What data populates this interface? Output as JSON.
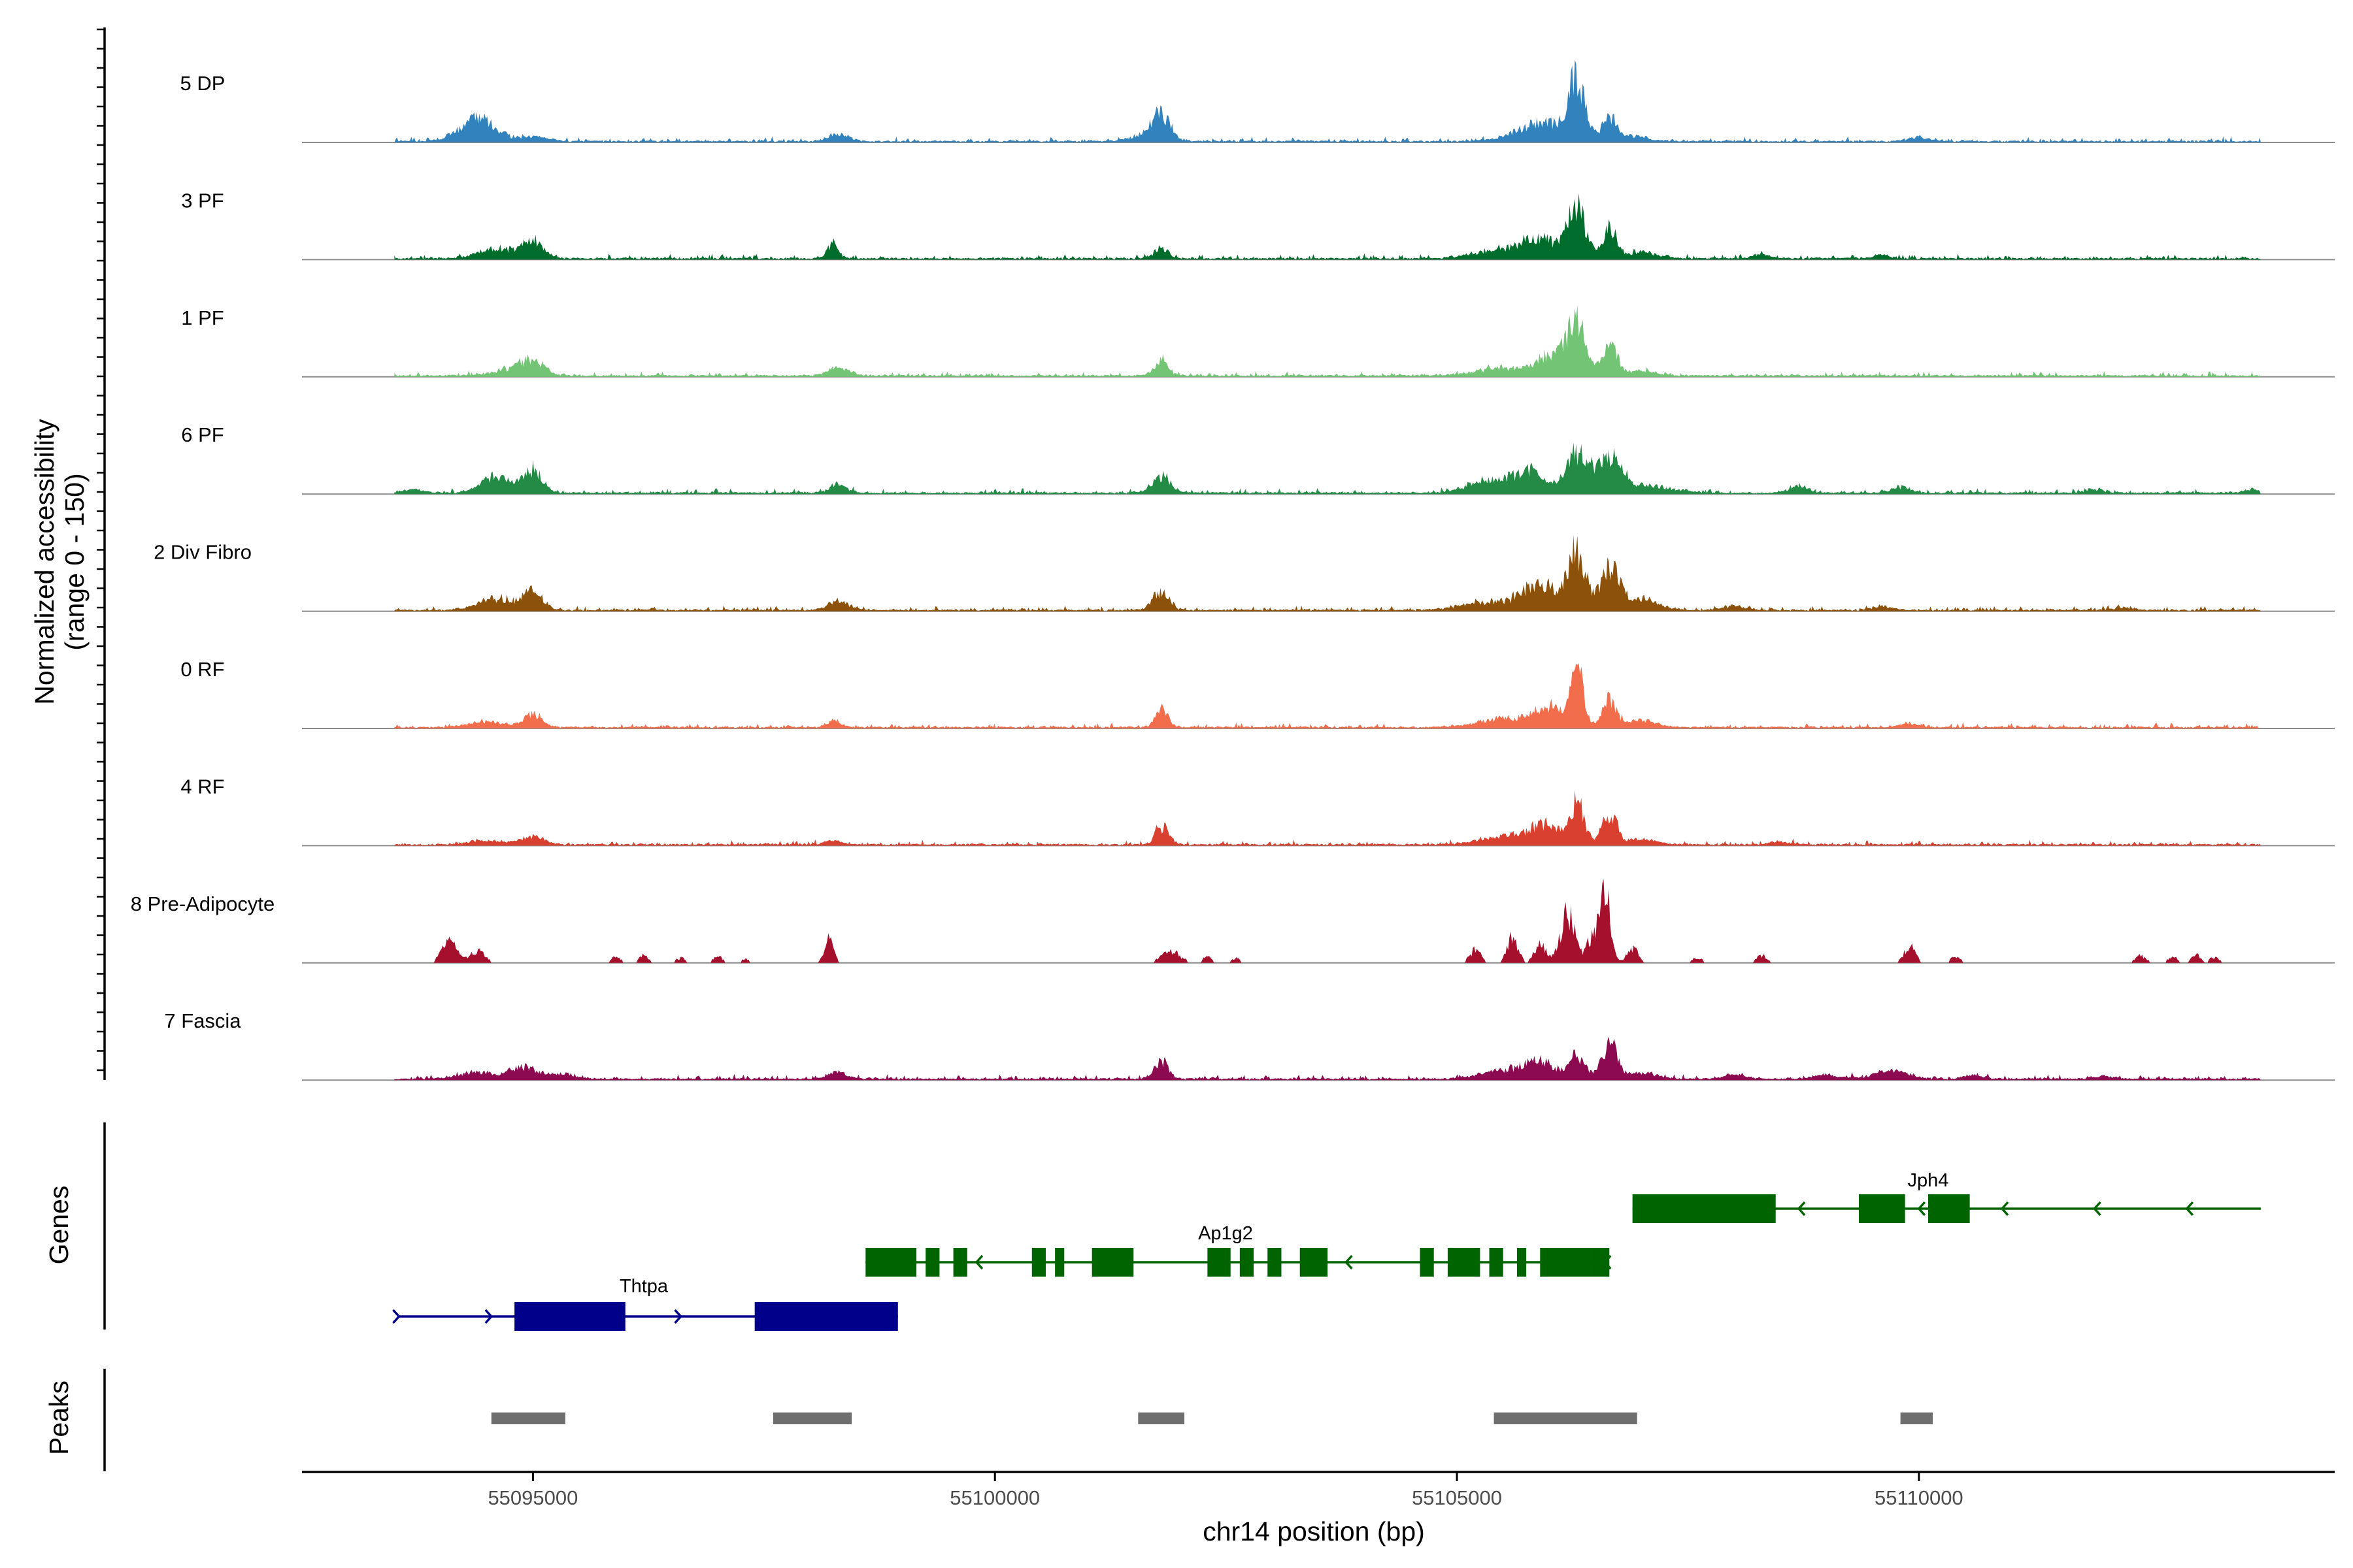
{
  "chart_data": {
    "type": "area",
    "title": "",
    "xlabel": "chr14 position (bp)",
    "ylabel_line1": "Normalized accessibility",
    "ylabel_line2": "(range 0 - 150)",
    "ylim": [
      0,
      150
    ],
    "xlim": [
      55092500,
      55114500
    ],
    "x_ticks": [
      55095000,
      55100000,
      55105000,
      55110000
    ],
    "x_tick_labels": [
      "55095000",
      "55100000",
      "55105000",
      "55110000"
    ],
    "data_start": 55093500,
    "data_end": 55113700,
    "tracks": [
      {
        "name": "5 DP",
        "color": "#3182BD",
        "noise": 0.05,
        "peaks": [
          [
            55094400,
            38,
            200
          ],
          [
            55095000,
            8,
            150
          ],
          [
            55098300,
            14,
            110
          ],
          [
            55101800,
            42,
            100
          ],
          [
            55101600,
            10,
            160
          ],
          [
            55105700,
            14,
            220
          ],
          [
            55106000,
            26,
            200
          ],
          [
            55106300,
            100,
            90
          ],
          [
            55106650,
            45,
            80
          ],
          [
            55106950,
            10,
            120
          ],
          [
            55110000,
            8,
            110
          ]
        ]
      },
      {
        "name": "3 PF",
        "color": "#006D2C",
        "noise": 0.05,
        "peaks": [
          [
            55094600,
            18,
            200
          ],
          [
            55095000,
            30,
            110
          ],
          [
            55098250,
            28,
            60
          ],
          [
            55101800,
            18,
            80
          ],
          [
            55105400,
            12,
            260
          ],
          [
            55105900,
            32,
            220
          ],
          [
            55106300,
            88,
            90
          ],
          [
            55106650,
            50,
            80
          ],
          [
            55107000,
            12,
            160
          ],
          [
            55108300,
            8,
            90
          ],
          [
            55109600,
            7,
            90
          ]
        ]
      },
      {
        "name": "1 PF",
        "color": "#74C476",
        "noise": 0.04,
        "peaks": [
          [
            55094800,
            12,
            220
          ],
          [
            55095000,
            22,
            110
          ],
          [
            55098300,
            14,
            110
          ],
          [
            55101800,
            26,
            80
          ],
          [
            55105500,
            14,
            280
          ],
          [
            55106050,
            38,
            150
          ],
          [
            55106300,
            85,
            90
          ],
          [
            55106650,
            55,
            80
          ],
          [
            55107000,
            10,
            160
          ]
        ]
      },
      {
        "name": "6 PF",
        "color": "#238B45",
        "noise": 0.06,
        "peaks": [
          [
            55093700,
            7,
            100
          ],
          [
            55094600,
            28,
            160
          ],
          [
            55095000,
            40,
            100
          ],
          [
            55098300,
            16,
            90
          ],
          [
            55101800,
            30,
            100
          ],
          [
            55105300,
            20,
            200
          ],
          [
            55105800,
            38,
            200
          ],
          [
            55106300,
            68,
            110
          ],
          [
            55106650,
            62,
            140
          ],
          [
            55107100,
            12,
            240
          ],
          [
            55108700,
            12,
            100
          ],
          [
            55109800,
            10,
            100
          ],
          [
            55111900,
            7,
            100
          ],
          [
            55113600,
            7,
            80
          ]
        ]
      },
      {
        "name": "2 Div Fibro",
        "color": "#8C510A",
        "noise": 0.06,
        "peaks": [
          [
            55094600,
            20,
            200
          ],
          [
            55095000,
            30,
            110
          ],
          [
            55098300,
            16,
            110
          ],
          [
            55101800,
            32,
            90
          ],
          [
            55105300,
            14,
            260
          ],
          [
            55105900,
            45,
            200
          ],
          [
            55106300,
            98,
            90
          ],
          [
            55106650,
            75,
            100
          ],
          [
            55107000,
            20,
            180
          ],
          [
            55108000,
            8,
            110
          ],
          [
            55109600,
            7,
            110
          ],
          [
            55112200,
            6,
            100
          ]
        ]
      },
      {
        "name": "0 RF",
        "color": "#F16D4B",
        "noise": 0.05,
        "peaks": [
          [
            55094500,
            10,
            200
          ],
          [
            55095000,
            22,
            100
          ],
          [
            55098250,
            14,
            70
          ],
          [
            55101800,
            32,
            70
          ],
          [
            55105500,
            16,
            260
          ],
          [
            55106000,
            35,
            160
          ],
          [
            55106300,
            95,
            70
          ],
          [
            55106650,
            45,
            80
          ],
          [
            55107000,
            12,
            150
          ],
          [
            55109900,
            8,
            90
          ]
        ]
      },
      {
        "name": "4 RF",
        "color": "#D94030",
        "noise": 0.04,
        "peaks": [
          [
            55094500,
            8,
            200
          ],
          [
            55095000,
            14,
            120
          ],
          [
            55098250,
            8,
            80
          ],
          [
            55101750,
            20,
            40
          ],
          [
            55101850,
            28,
            50
          ],
          [
            55105500,
            14,
            260
          ],
          [
            55105950,
            32,
            170
          ],
          [
            55106300,
            75,
            80
          ],
          [
            55106650,
            50,
            80
          ],
          [
            55107000,
            10,
            160
          ],
          [
            55108500,
            5,
            100
          ]
        ]
      },
      {
        "name": "8 Pre-Adipocyte",
        "color": "#A5102D",
        "noise": 0.0,
        "peaks": [
          [
            55094100,
            42,
            80
          ],
          [
            55094400,
            20,
            80
          ],
          [
            55095900,
            10,
            50
          ],
          [
            55096200,
            14,
            50
          ],
          [
            55096600,
            8,
            50
          ],
          [
            55097000,
            12,
            50
          ],
          [
            55097300,
            8,
            40
          ],
          [
            55098200,
            38,
            50
          ],
          [
            55101900,
            20,
            100
          ],
          [
            55102300,
            10,
            50
          ],
          [
            55102600,
            8,
            50
          ],
          [
            55105200,
            22,
            60
          ],
          [
            55105600,
            42,
            60
          ],
          [
            55105900,
            32,
            60
          ],
          [
            55106200,
            85,
            80
          ],
          [
            55106450,
            40,
            50
          ],
          [
            55106600,
            125,
            60
          ],
          [
            55106900,
            25,
            60
          ],
          [
            55107600,
            10,
            50
          ],
          [
            55108300,
            12,
            60
          ],
          [
            55109900,
            28,
            60
          ],
          [
            55110400,
            12,
            50
          ],
          [
            55112400,
            12,
            60
          ],
          [
            55112750,
            12,
            50
          ],
          [
            55113000,
            14,
            50
          ],
          [
            55113200,
            10,
            50
          ]
        ]
      },
      {
        "name": "7 Fascia",
        "color": "#8B0A50",
        "noise": 0.06,
        "peaks": [
          [
            55094400,
            12,
            200
          ],
          [
            55094900,
            20,
            150
          ],
          [
            55095300,
            10,
            150
          ],
          [
            55098300,
            14,
            90
          ],
          [
            55101800,
            30,
            80
          ],
          [
            55105500,
            14,
            260
          ],
          [
            55105900,
            28,
            170
          ],
          [
            55106300,
            40,
            90
          ],
          [
            55106650,
            62,
            80
          ],
          [
            55107000,
            12,
            150
          ],
          [
            55108000,
            8,
            110
          ],
          [
            55109000,
            8,
            130
          ],
          [
            55109700,
            14,
            200
          ],
          [
            55110600,
            7,
            110
          ],
          [
            55112000,
            6,
            100
          ]
        ]
      }
    ],
    "genes": {
      "title": "Genes",
      "items": [
        {
          "name": "Thtpa",
          "strand": "+",
          "color": "#00008B",
          "start": 55093550,
          "end": 55098950,
          "exons": [
            [
              55094800,
              55096000
            ],
            [
              55097400,
              55098950
            ]
          ],
          "arrows": [
            55093550,
            55094550,
            55096600
          ]
        },
        {
          "name": "Ap1g2",
          "strand": "-",
          "color": "#006400",
          "start": 55098600,
          "end": 55106600,
          "exons": [
            [
              55098600,
              55099150
            ],
            [
              55099250,
              55099400
            ],
            [
              55099550,
              55099700
            ],
            [
              55100400,
              55100550
            ],
            [
              55100650,
              55100750
            ],
            [
              55101050,
              55101500
            ],
            [
              55102300,
              55102550
            ],
            [
              55102650,
              55102800
            ],
            [
              55102950,
              55103100
            ],
            [
              55103300,
              55103600
            ],
            [
              55104600,
              55104750
            ],
            [
              55104900,
              55105250
            ],
            [
              55105350,
              55105500
            ],
            [
              55105650,
              55105750
            ],
            [
              55105900,
              55106450
            ],
            [
              55106450,
              55106650
            ]
          ],
          "arrows": [
            55099800,
            55103800,
            55106600
          ]
        },
        {
          "name": "Jph4",
          "strand": "-",
          "color": "#006400",
          "start": 55106900,
          "end": 55113700,
          "exons": [
            [
              55106900,
              55108450
            ],
            [
              55109350,
              55109850
            ],
            [
              55110100,
              55110550
            ]
          ],
          "arrows": [
            55108700,
            55110000,
            55110900,
            55111900,
            55112900
          ]
        }
      ]
    },
    "peaks_track": {
      "title": "Peaks",
      "color": "#6E6E6E",
      "regions": [
        [
          55094550,
          55095350
        ],
        [
          55097600,
          55098450
        ],
        [
          55101550,
          55102050
        ],
        [
          55105400,
          55106950
        ],
        [
          55109800,
          55110150
        ]
      ]
    }
  }
}
